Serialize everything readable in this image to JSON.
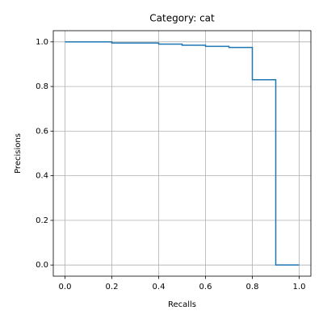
{
  "chart_data": {
    "type": "line",
    "step": "post",
    "title": "Category: cat",
    "x_label": "Recalls",
    "y_label": "Precisions",
    "x": [
      0,
      0.2,
      0.4,
      0.5,
      0.6,
      0.7,
      0.8,
      0.9,
      1.0
    ],
    "series": [
      {
        "color": "#1f77b4",
        "values": [
          1.0,
          0.995,
          0.99,
          0.985,
          0.98,
          0.975,
          0.83,
          0.0,
          0.0
        ]
      }
    ],
    "xlim": [
      -0.05,
      1.05
    ],
    "ylim": [
      -0.05,
      1.05
    ],
    "xticks": [
      {
        "value": 0,
        "label": "0.0"
      },
      0.2,
      0.4,
      0.6,
      0.8,
      {
        "value": 1,
        "label": "1.0"
      }
    ],
    "yticks": [
      {
        "value": 0,
        "label": "0.0"
      },
      0.2,
      0.4,
      0.6,
      0.8,
      {
        "value": 1,
        "label": "1.0"
      }
    ],
    "grid": true
  }
}
